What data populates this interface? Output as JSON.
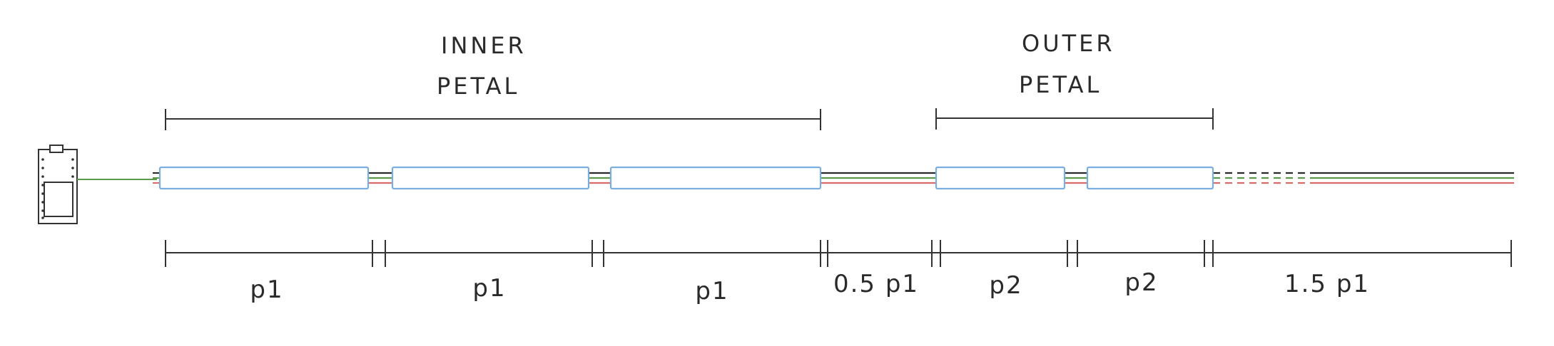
{
  "groups": [
    {
      "line1": "INNER",
      "line2": "PETAL"
    },
    {
      "line1": "OUTER",
      "line2": "PETAL"
    }
  ],
  "segments": [
    "p1",
    "p1",
    "p1",
    "0.5 p1",
    "p2",
    "p2",
    "1.5 p1"
  ],
  "colors": {
    "strip_outline": "#7aaee0",
    "wire_black": "#2a2a2a",
    "wire_green": "#5a9a48",
    "wire_red": "#d96a6a",
    "ink": "#333333"
  }
}
